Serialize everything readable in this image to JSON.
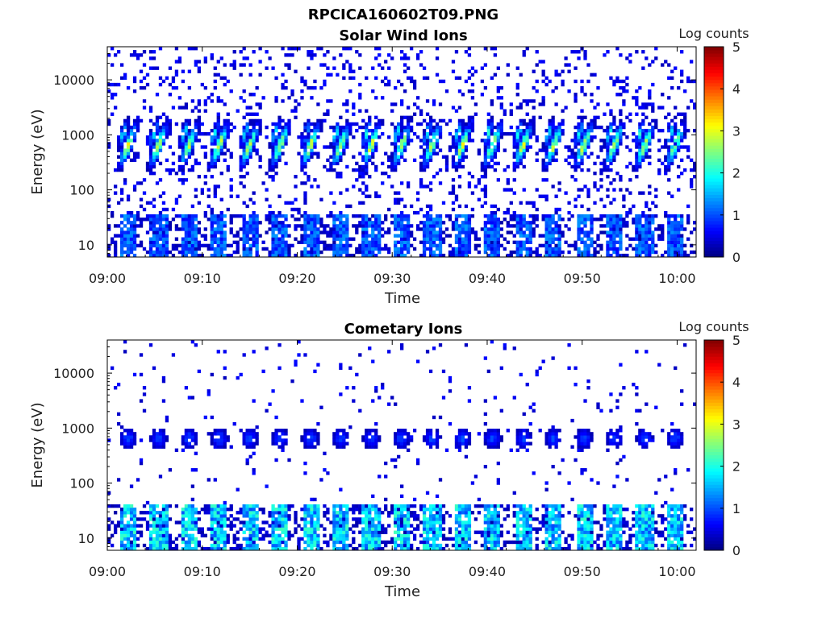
{
  "figure_title": "RPCICA160602T09.PNG",
  "chart_data": [
    {
      "type": "heatmap",
      "title": "Solar Wind Ions",
      "xlabel": "Time",
      "ylabel": "Energy (eV)",
      "yscale": "log",
      "ylim": [
        6,
        40000
      ],
      "xlim_minutes": [
        0,
        62
      ],
      "x_ticks": [
        {
          "minutes": 0,
          "label": "09:00"
        },
        {
          "minutes": 10,
          "label": "09:10"
        },
        {
          "minutes": 20,
          "label": "09:20"
        },
        {
          "minutes": 30,
          "label": "09:30"
        },
        {
          "minutes": 40,
          "label": "09:40"
        },
        {
          "minutes": 50,
          "label": "09:50"
        },
        {
          "minutes": 60,
          "label": "10:00"
        }
      ],
      "y_ticks": [
        {
          "value": 10,
          "label": "10"
        },
        {
          "value": 100,
          "label": "100"
        },
        {
          "value": 1000,
          "label": "1000"
        },
        {
          "value": 10000,
          "label": "10000"
        }
      ],
      "colorbar": {
        "label": "Log counts",
        "range": [
          0,
          5
        ],
        "ticks": [
          {
            "value": 0,
            "label": "0"
          },
          {
            "value": 1,
            "label": "1"
          },
          {
            "value": 2,
            "label": "2"
          },
          {
            "value": 3,
            "label": "3"
          },
          {
            "value": 4,
            "label": "4"
          },
          {
            "value": 5,
            "label": "5"
          }
        ]
      },
      "features": {
        "beam_period_minutes": 3.2,
        "beam_center_energy_eV": 650,
        "beam_upper_energy_eV": 1600,
        "beam_peak_log_counts": 3.0,
        "low_energy_band_eV": [
          6,
          35
        ],
        "low_energy_peak_log_counts": 1.4,
        "background_log_counts": 0.3
      }
    },
    {
      "type": "heatmap",
      "title": "Cometary Ions",
      "xlabel": "Time",
      "ylabel": "Energy (eV)",
      "yscale": "log",
      "ylim": [
        6,
        40000
      ],
      "xlim_minutes": [
        0,
        62
      ],
      "x_ticks": [
        {
          "minutes": 0,
          "label": "09:00"
        },
        {
          "minutes": 10,
          "label": "09:10"
        },
        {
          "minutes": 20,
          "label": "09:20"
        },
        {
          "minutes": 30,
          "label": "09:30"
        },
        {
          "minutes": 40,
          "label": "09:40"
        },
        {
          "minutes": 50,
          "label": "09:50"
        },
        {
          "minutes": 60,
          "label": "10:00"
        }
      ],
      "y_ticks": [
        {
          "value": 10,
          "label": "10"
        },
        {
          "value": 100,
          "label": "100"
        },
        {
          "value": 1000,
          "label": "1000"
        },
        {
          "value": 10000,
          "label": "10000"
        }
      ],
      "colorbar": {
        "label": "Log counts",
        "range": [
          0,
          5
        ],
        "ticks": [
          {
            "value": 0,
            "label": "0"
          },
          {
            "value": 1,
            "label": "1"
          },
          {
            "value": 2,
            "label": "2"
          },
          {
            "value": 3,
            "label": "3"
          },
          {
            "value": 4,
            "label": "4"
          },
          {
            "value": 5,
            "label": "5"
          }
        ]
      },
      "features": {
        "beam_period_minutes": 3.2,
        "beam_center_energy_eV": 650,
        "beam_peak_log_counts": 1.0,
        "low_energy_band_eV": [
          6,
          40
        ],
        "low_energy_peak_log_counts": 2.2,
        "background_log_counts": 0.3
      }
    }
  ]
}
